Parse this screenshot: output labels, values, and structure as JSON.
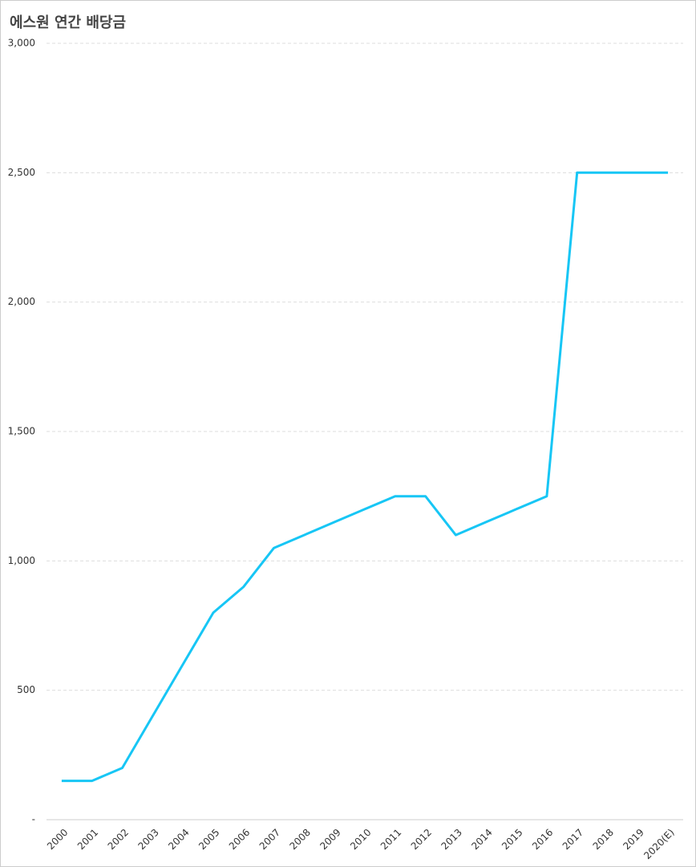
{
  "chart_data": {
    "type": "line",
    "title": "에스원 연간 배당금",
    "categories": [
      "2000",
      "2001",
      "2002",
      "2003",
      "2004",
      "2005",
      "2006",
      "2007",
      "2008",
      "2009",
      "2010",
      "2011",
      "2012",
      "2013",
      "2014",
      "2015",
      "2016",
      "2017",
      "2018",
      "2019",
      "2020(E)"
    ],
    "values": [
      150,
      150,
      200,
      400,
      600,
      800,
      900,
      1050,
      1100,
      1150,
      1200,
      1250,
      1250,
      1100,
      1150,
      1200,
      1250,
      2500,
      2500,
      2500,
      2500
    ],
    "color": "#17c6f5",
    "ylim": [
      0,
      3000
    ],
    "yticks": [
      {
        "value": 0,
        "label": "-"
      },
      500,
      {
        "value": 1000,
        "label": "1,000"
      },
      {
        "value": 1500,
        "label": "1,500"
      },
      {
        "value": 2000,
        "label": "2,000"
      },
      {
        "value": 2500,
        "label": "2,500"
      },
      {
        "value": 3000,
        "label": "3,000"
      }
    ],
    "grid": true
  }
}
